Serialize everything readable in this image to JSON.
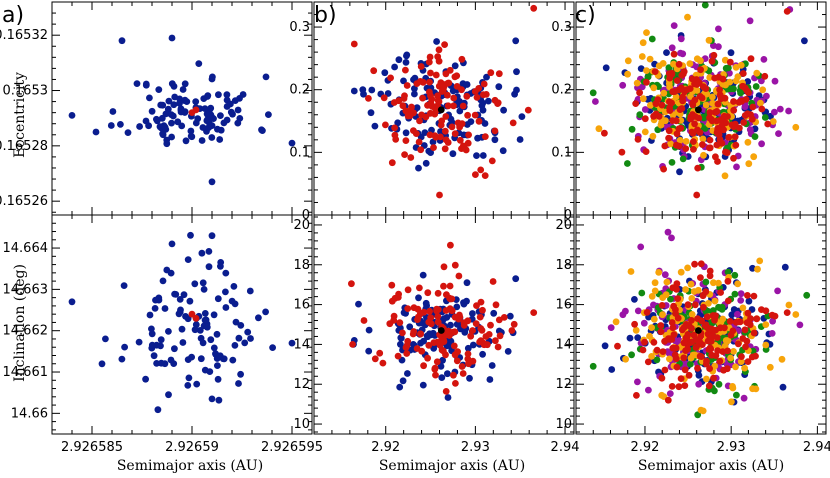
{
  "colors": {
    "blue": "#0a1d8f",
    "red": "#d4140e",
    "orange": "#f7a40a",
    "green": "#128a12",
    "purple": "#9a14a6",
    "black": "#000000"
  },
  "panel_labels": [
    "a)",
    "b)",
    "c)"
  ],
  "xlabel": "Semimajor axis (AU)",
  "ylabel_top": "Eccentricity",
  "ylabel_bottom": "Inclination (deg)",
  "chart_data": [
    {
      "type": "scatter",
      "panel": "a-top",
      "xlim": [
        2.926583,
        2.926596
      ],
      "ylim": [
        0.165255,
        0.165332
      ],
      "xticks": [
        2.926585,
        2.92659,
        2.926595
      ],
      "xticklabels": [
        "2.926585",
        "2.92659",
        "2.926595"
      ],
      "yticks": [
        0.16526,
        0.16528,
        0.1653,
        0.16532
      ],
      "yticklabels": [
        "0.16526",
        "0.16528",
        "0.1653",
        "0.16532"
      ],
      "show_xticklabels": false,
      "show_yticklabels": true,
      "series": [
        {
          "color": "blue",
          "n": 110,
          "seed": 11,
          "cx": 2.92659,
          "sx": 1.6e-06,
          "cy": 0.165292,
          "sy": 6.5e-06,
          "extra": [
            [
              2.926584,
              0.165291
            ],
            [
              2.9265852,
              0.165285
            ],
            [
              2.9265865,
              0.165318
            ],
            [
              2.926589,
              0.165319
            ],
            [
              2.926595,
              0.165281
            ],
            [
              2.926591,
              0.165267
            ]
          ]
        },
        {
          "color": "red",
          "n": 0,
          "seed": 1,
          "cx": 0,
          "sx": 0,
          "cy": 0,
          "sy": 0,
          "extra": [
            [
              2.92659,
              0.165292
            ],
            [
              2.9265902,
              0.165293
            ]
          ]
        }
      ]
    },
    {
      "type": "scatter",
      "panel": "a-bottom",
      "xlim": [
        2.926583,
        2.926596
      ],
      "ylim": [
        14.6595,
        14.6648
      ],
      "xticks": [
        2.926585,
        2.92659,
        2.926595
      ],
      "xticklabels": [
        "2.926585",
        "2.92659",
        "2.926595"
      ],
      "yticks": [
        14.66,
        14.661,
        14.662,
        14.663,
        14.664
      ],
      "yticklabels": [
        "14.66",
        "14.661",
        "14.662",
        "14.663",
        "14.664"
      ],
      "show_xticklabels": true,
      "show_yticklabels": true,
      "series": [
        {
          "color": "blue",
          "n": 110,
          "seed": 23,
          "cx": 2.92659,
          "sx": 1.6e-06,
          "cy": 14.662,
          "sy": 0.00075,
          "extra": [
            [
              2.926584,
              14.6627
            ],
            [
              2.9265855,
              14.6612
            ],
            [
              2.926595,
              14.6617
            ],
            [
              2.926591,
              14.66035
            ],
            [
              2.926589,
              14.6641
            ],
            [
              2.926591,
              14.6643
            ]
          ]
        },
        {
          "color": "red",
          "n": 0,
          "seed": 1,
          "cx": 0,
          "sx": 0,
          "cy": 0,
          "sy": 0,
          "extra": [
            [
              2.92659,
              14.6624
            ],
            [
              2.9265902,
              14.6623
            ]
          ]
        }
      ]
    },
    {
      "type": "scatter",
      "panel": "b-top",
      "xlim": [
        2.912,
        2.941
      ],
      "ylim": [
        0,
        0.34
      ],
      "xticks": [
        2.92,
        2.93,
        2.94
      ],
      "xticklabels": [
        "2.92",
        "2.93",
        "2.94"
      ],
      "yticks": [
        0,
        0.1,
        0.2,
        0.3
      ],
      "yticklabels": [
        "0",
        "0.1",
        "0.2",
        "0.3"
      ],
      "show_xticklabels": false,
      "show_yticklabels": true,
      "series": [
        {
          "color": "blue",
          "n": 130,
          "seed": 37,
          "cx": 2.9265,
          "sx": 0.0038,
          "cy": 0.175,
          "sy": 0.042,
          "extra": [
            [
              2.9345,
              0.278
            ],
            [
              2.9165,
              0.198
            ]
          ]
        },
        {
          "color": "red",
          "n": 130,
          "seed": 41,
          "cx": 2.9265,
          "sx": 0.0036,
          "cy": 0.17,
          "sy": 0.042,
          "extra": [
            [
              2.9165,
              0.273
            ],
            [
              2.9365,
              0.33
            ],
            [
              2.926,
              0.032
            ]
          ]
        },
        {
          "color": "black",
          "n": 0,
          "seed": 1,
          "cx": 0,
          "sx": 0,
          "cy": 0,
          "sy": 0,
          "extra": [
            [
              2.9262,
              0.168
            ]
          ]
        }
      ]
    },
    {
      "type": "scatter",
      "panel": "b-bottom",
      "xlim": [
        2.912,
        2.941
      ],
      "ylim": [
        9.5,
        20.5
      ],
      "xticks": [
        2.92,
        2.93,
        2.94
      ],
      "xticklabels": [
        "2.92",
        "2.93",
        "2.94"
      ],
      "yticks": [
        10,
        12,
        14,
        16,
        18,
        20
      ],
      "yticklabels": [
        "10",
        "12",
        "14",
        "16",
        "18",
        "20"
      ],
      "show_xticklabels": true,
      "show_yticklabels": true,
      "series": [
        {
          "color": "blue",
          "n": 130,
          "seed": 53,
          "cx": 2.9265,
          "sx": 0.0038,
          "cy": 14.6,
          "sy": 1.15,
          "extra": [
            [
              2.9345,
              17.3
            ],
            [
              2.9165,
              14.2
            ]
          ]
        },
        {
          "color": "red",
          "n": 130,
          "seed": 59,
          "cx": 2.9265,
          "sx": 0.0036,
          "cy": 14.6,
          "sy": 1.15,
          "extra": [
            [
              2.9365,
              15.6
            ],
            [
              2.9265,
              17.9
            ],
            [
              2.9163,
              14.0
            ]
          ]
        },
        {
          "color": "black",
          "n": 0,
          "seed": 1,
          "cx": 0,
          "sx": 0,
          "cy": 0,
          "sy": 0,
          "extra": [
            [
              2.9262,
              14.7
            ]
          ]
        }
      ]
    },
    {
      "type": "scatter",
      "panel": "c-top",
      "xlim": [
        2.912,
        2.941
      ],
      "ylim": [
        0,
        0.34
      ],
      "xticks": [
        2.92,
        2.93,
        2.94
      ],
      "xticklabels": [
        "2.92",
        "2.93",
        "2.94"
      ],
      "yticks": [
        0,
        0.1,
        0.2,
        0.3
      ],
      "yticklabels": [
        "0",
        "0.1",
        "0.2",
        "0.3"
      ],
      "show_xticklabels": false,
      "show_yticklabels": true,
      "series": [
        {
          "color": "blue",
          "n": 120,
          "seed": 61,
          "cx": 2.9265,
          "sx": 0.004,
          "cy": 0.175,
          "sy": 0.045,
          "extra": [
            [
              2.9385,
              0.278
            ],
            [
              2.9155,
              0.235
            ]
          ]
        },
        {
          "color": "purple",
          "n": 120,
          "seed": 67,
          "cx": 2.9265,
          "sx": 0.0042,
          "cy": 0.175,
          "sy": 0.048,
          "extra": [
            [
              2.9368,
              0.328
            ],
            [
              2.9322,
              0.31
            ]
          ]
        },
        {
          "color": "green",
          "n": 110,
          "seed": 71,
          "cx": 2.9265,
          "sx": 0.004,
          "cy": 0.175,
          "sy": 0.045,
          "extra": [
            [
              2.914,
              0.195
            ],
            [
              2.927,
              0.335
            ]
          ]
        },
        {
          "color": "orange",
          "n": 140,
          "seed": 73,
          "cx": 2.9265,
          "sx": 0.004,
          "cy": 0.178,
          "sy": 0.045,
          "extra": [
            [
              2.9375,
              0.14
            ],
            [
              2.9198,
              0.275
            ]
          ]
        },
        {
          "color": "red",
          "n": 150,
          "seed": 79,
          "cx": 2.9265,
          "sx": 0.0036,
          "cy": 0.172,
          "sy": 0.04,
          "extra": [
            [
              2.9365,
              0.325
            ],
            [
              2.926,
              0.032
            ]
          ]
        },
        {
          "color": "black",
          "n": 0,
          "seed": 1,
          "cx": 0,
          "sx": 0,
          "cy": 0,
          "sy": 0,
          "extra": [
            [
              2.9262,
              0.168
            ]
          ]
        }
      ]
    },
    {
      "type": "scatter",
      "panel": "c-bottom",
      "xlim": [
        2.912,
        2.941
      ],
      "ylim": [
        9.5,
        20.5
      ],
      "xticks": [
        2.92,
        2.93,
        2.94
      ],
      "xticklabels": [
        "2.92",
        "2.93",
        "2.94"
      ],
      "yticks": [
        10,
        12,
        14,
        16,
        18,
        20
      ],
      "yticklabels": [
        "10",
        "12",
        "14",
        "16",
        "18",
        "20"
      ],
      "show_xticklabels": true,
      "show_yticklabels": true,
      "series": [
        {
          "color": "blue",
          "n": 120,
          "seed": 83,
          "cx": 2.9265,
          "sx": 0.004,
          "cy": 14.6,
          "sy": 1.3,
          "extra": [
            [
              2.9345,
              14.0
            ],
            [
              2.9175,
              13.3
            ]
          ]
        },
        {
          "color": "purple",
          "n": 120,
          "seed": 89,
          "cx": 2.9265,
          "sx": 0.0042,
          "cy": 14.8,
          "sy": 1.6,
          "extra": [
            [
              2.9195,
              18.9
            ],
            [
              2.9315,
              11.3
            ]
          ]
        },
        {
          "color": "green",
          "n": 110,
          "seed": 97,
          "cx": 2.9265,
          "sx": 0.004,
          "cy": 14.6,
          "sy": 1.4,
          "extra": [
            [
              2.914,
              12.9
            ]
          ]
        },
        {
          "color": "orange",
          "n": 140,
          "seed": 101,
          "cx": 2.9265,
          "sx": 0.004,
          "cy": 14.7,
          "sy": 1.5,
          "extra": [
            [
              2.9375,
              15.5
            ],
            [
              2.9265,
              10.7
            ]
          ]
        },
        {
          "color": "red",
          "n": 150,
          "seed": 103,
          "cx": 2.9265,
          "sx": 0.0036,
          "cy": 14.6,
          "sy": 1.3,
          "extra": [
            [
              2.9365,
              15.6
            ]
          ]
        },
        {
          "color": "black",
          "n": 0,
          "seed": 1,
          "cx": 0,
          "sx": 0,
          "cy": 0,
          "sy": 0,
          "extra": [
            [
              2.9262,
              14.7
            ]
          ]
        }
      ]
    }
  ]
}
